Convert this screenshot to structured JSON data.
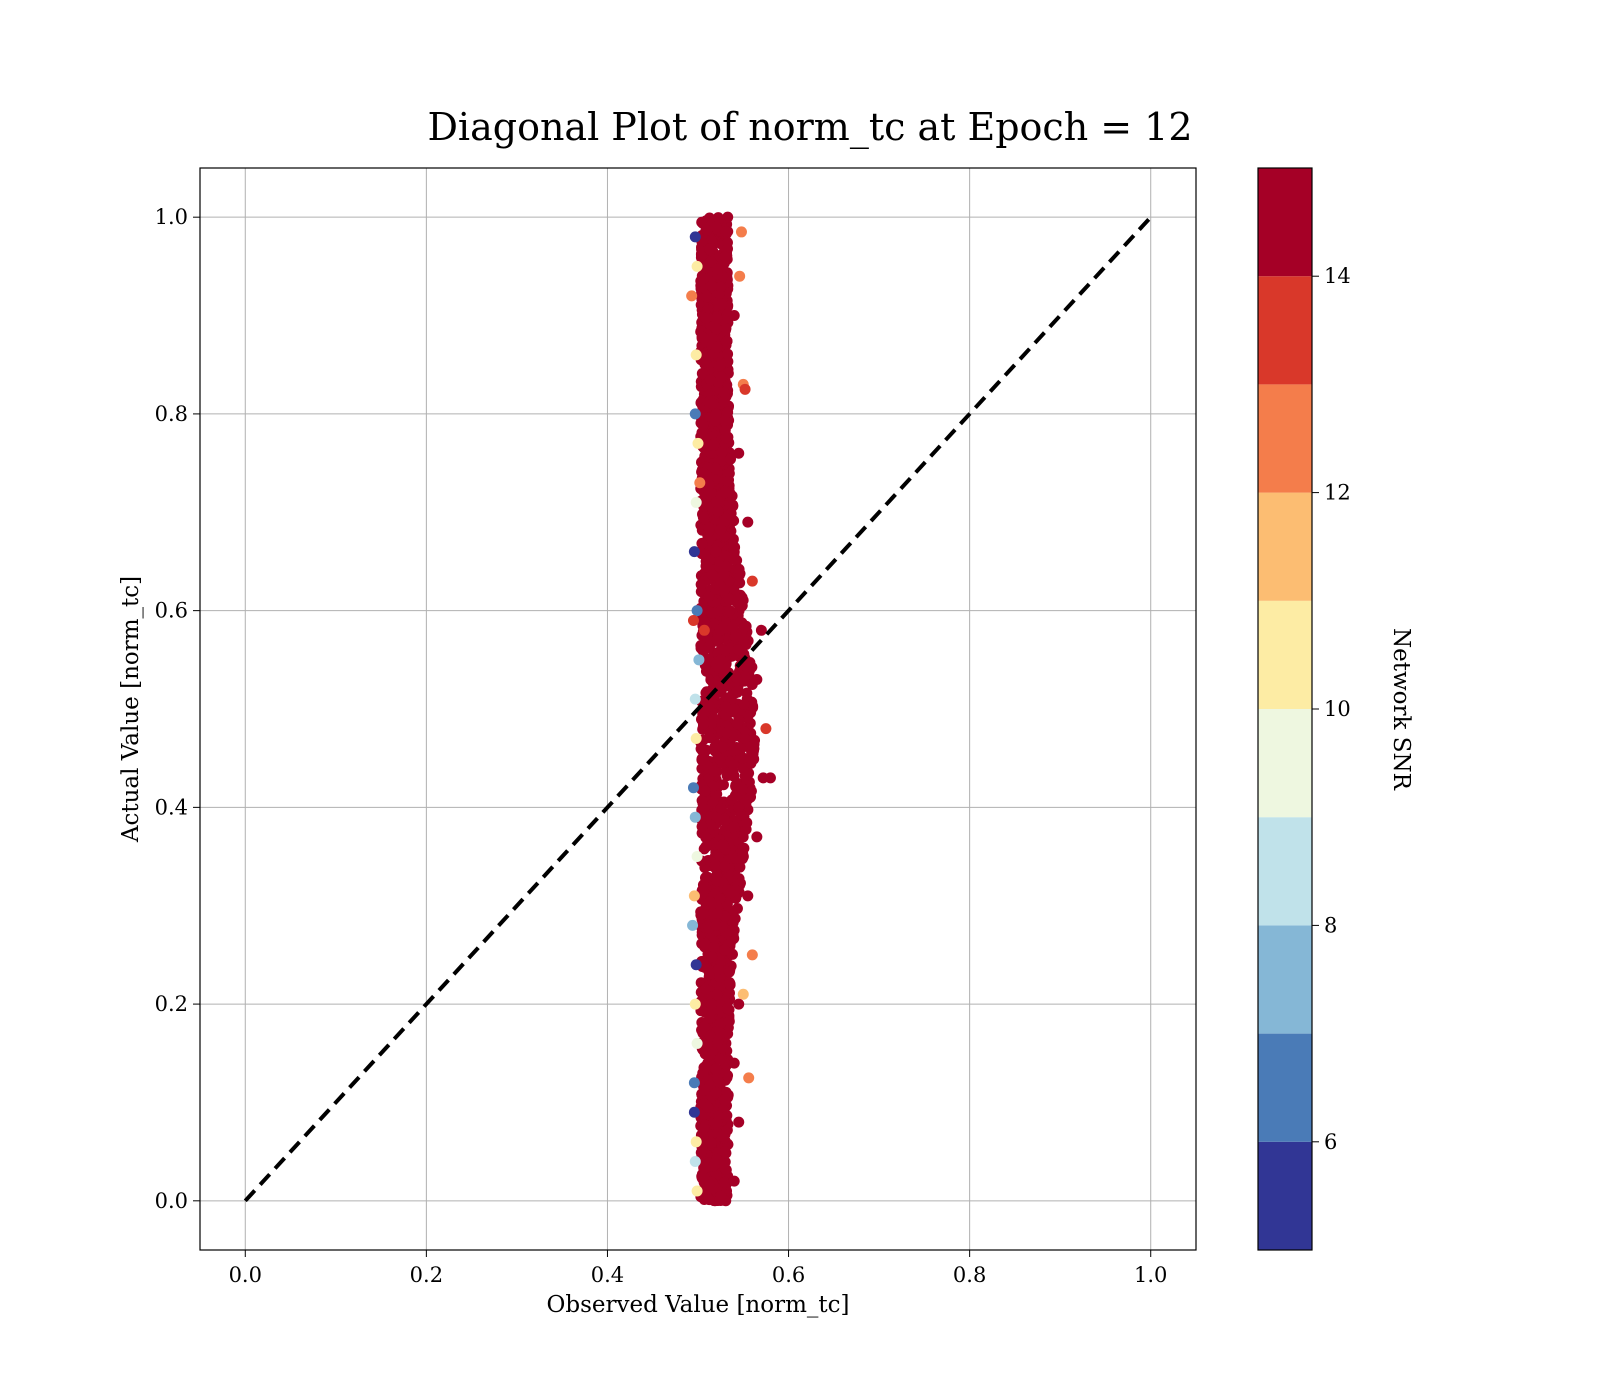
{
  "chart_data": {
    "type": "scatter",
    "title": "Diagonal Plot of norm_tc at Epoch = 12",
    "xlabel": "Observed Value [norm_tc]",
    "ylabel": "Actual Value [norm_tc]",
    "xlim": [
      -0.05,
      1.05
    ],
    "ylim": [
      -0.05,
      1.05
    ],
    "x_ticks": [
      "0.0",
      "0.2",
      "0.4",
      "0.6",
      "0.8",
      "1.0"
    ],
    "y_ticks": [
      "0.0",
      "0.2",
      "0.4",
      "0.6",
      "0.8",
      "1.0"
    ],
    "x_tick_values": [
      0.0,
      0.2,
      0.4,
      0.6,
      0.8,
      1.0
    ],
    "y_tick_values": [
      0.0,
      0.2,
      0.4,
      0.6,
      0.8,
      1.0
    ],
    "grid": true,
    "reference_line": {
      "style": "dashed",
      "color": "#000000",
      "from": [
        0.0,
        0.0
      ],
      "to": [
        1.0,
        1.0
      ]
    },
    "colorbar": {
      "label": "Network SNR",
      "range": [
        5,
        15
      ],
      "ticks": [
        "6",
        "8",
        "10",
        "12",
        "14"
      ],
      "tick_values": [
        6,
        8,
        10,
        12,
        14
      ],
      "colormap": "RdYlBu_r",
      "bins": [
        {
          "from": 5,
          "to": 6,
          "color": "#313695"
        },
        {
          "from": 6,
          "to": 7,
          "color": "#4a7bb7"
        },
        {
          "from": 7,
          "to": 8,
          "color": "#85b7d6"
        },
        {
          "from": 8,
          "to": 9,
          "color": "#c0e2ea"
        },
        {
          "from": 9,
          "to": 10,
          "color": "#eef7e0"
        },
        {
          "from": 10,
          "to": 11,
          "color": "#fdeca4"
        },
        {
          "from": 11,
          "to": 12,
          "color": "#fcbd72"
        },
        {
          "from": 12,
          "to": 13,
          "color": "#f47d4b"
        },
        {
          "from": 13,
          "to": 14,
          "color": "#d9382a"
        },
        {
          "from": 14,
          "to": 15,
          "color": "#a50026"
        }
      ]
    },
    "points": [
      [
        0.497,
        0.98,
        6
      ],
      [
        0.499,
        0.95,
        11
      ],
      [
        0.493,
        0.92,
        13
      ],
      [
        0.498,
        0.86,
        11
      ],
      [
        0.497,
        0.8,
        7
      ],
      [
        0.5,
        0.77,
        11
      ],
      [
        0.498,
        0.71,
        10
      ],
      [
        0.496,
        0.66,
        6
      ],
      [
        0.499,
        0.6,
        7
      ],
      [
        0.501,
        0.55,
        8
      ],
      [
        0.497,
        0.51,
        9
      ],
      [
        0.498,
        0.47,
        11
      ],
      [
        0.495,
        0.42,
        7
      ],
      [
        0.497,
        0.39,
        8
      ],
      [
        0.499,
        0.35,
        10
      ],
      [
        0.496,
        0.31,
        12
      ],
      [
        0.494,
        0.28,
        8
      ],
      [
        0.498,
        0.24,
        6
      ],
      [
        0.497,
        0.2,
        11
      ],
      [
        0.499,
        0.16,
        10
      ],
      [
        0.496,
        0.12,
        7
      ],
      [
        0.496,
        0.09,
        6
      ],
      [
        0.498,
        0.06,
        11
      ],
      [
        0.497,
        0.04,
        9
      ],
      [
        0.499,
        0.01,
        11
      ],
      [
        0.495,
        0.59,
        14
      ],
      [
        0.507,
        0.58,
        14
      ],
      [
        0.502,
        0.73,
        13
      ],
      [
        0.52,
        0.99,
        15
      ],
      [
        0.53,
        0.96,
        15
      ],
      [
        0.515,
        0.93,
        15
      ],
      [
        0.54,
        0.9,
        15
      ],
      [
        0.525,
        0.85,
        15
      ],
      [
        0.55,
        0.83,
        13
      ],
      [
        0.52,
        0.8,
        15
      ],
      [
        0.545,
        0.76,
        15
      ],
      [
        0.53,
        0.72,
        15
      ],
      [
        0.555,
        0.69,
        15
      ],
      [
        0.52,
        0.66,
        15
      ],
      [
        0.56,
        0.63,
        14
      ],
      [
        0.535,
        0.6,
        15
      ],
      [
        0.57,
        0.58,
        15
      ],
      [
        0.525,
        0.55,
        15
      ],
      [
        0.565,
        0.53,
        15
      ],
      [
        0.54,
        0.5,
        15
      ],
      [
        0.575,
        0.48,
        14
      ],
      [
        0.55,
        0.45,
        15
      ],
      [
        0.572,
        0.43,
        15
      ],
      [
        0.58,
        0.43,
        15
      ],
      [
        0.545,
        0.4,
        15
      ],
      [
        0.565,
        0.37,
        15
      ],
      [
        0.53,
        0.34,
        15
      ],
      [
        0.555,
        0.31,
        15
      ],
      [
        0.52,
        0.28,
        15
      ],
      [
        0.56,
        0.25,
        13
      ],
      [
        0.535,
        0.22,
        15
      ],
      [
        0.545,
        0.2,
        15
      ],
      [
        0.525,
        0.17,
        15
      ],
      [
        0.54,
        0.14,
        15
      ],
      [
        0.52,
        0.11,
        15
      ],
      [
        0.545,
        0.08,
        15
      ],
      [
        0.53,
        0.05,
        15
      ],
      [
        0.54,
        0.02,
        15
      ],
      [
        0.525,
        0.005,
        15
      ],
      [
        0.548,
        0.985,
        13
      ],
      [
        0.546,
        0.94,
        13
      ],
      [
        0.552,
        0.825,
        14
      ],
      [
        0.55,
        0.21,
        12
      ],
      [
        0.556,
        0.125,
        13
      ]
    ]
  }
}
